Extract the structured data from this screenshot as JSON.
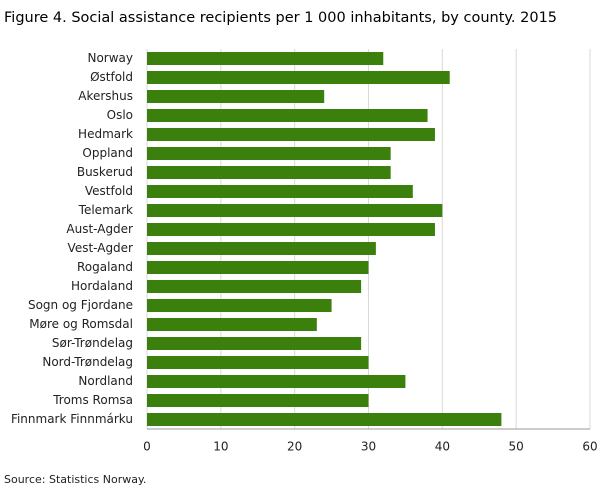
{
  "chart_data": {
    "type": "bar",
    "orientation": "horizontal",
    "title": "Figure 4. Social assistance recipients per 1 000 inhabitants, by county. 2015",
    "source": "Source: Statistics Norway.",
    "categories": [
      "Norway",
      "Østfold",
      "Akershus",
      "Oslo",
      "Hedmark",
      "Oppland",
      "Buskerud",
      "Vestfold",
      "Telemark",
      "Aust-Agder",
      "Vest-Agder",
      "Rogaland",
      "Hordaland",
      "Sogn og Fjordane",
      "Møre og Romsdal",
      "Sør-Trøndelag",
      "Nord-Trøndelag",
      "Nordland",
      "Troms Romsa",
      "Finnmark Finnmárku"
    ],
    "values": [
      32,
      41,
      24,
      38,
      39,
      33,
      33,
      36,
      40,
      39,
      31,
      30,
      29,
      25,
      23,
      29,
      30,
      35,
      30,
      48
    ],
    "color": "#3b7f0d",
    "xlim": [
      0,
      60
    ],
    "xticks": [
      0,
      10,
      20,
      30,
      40,
      50,
      60
    ],
    "grid": true
  }
}
